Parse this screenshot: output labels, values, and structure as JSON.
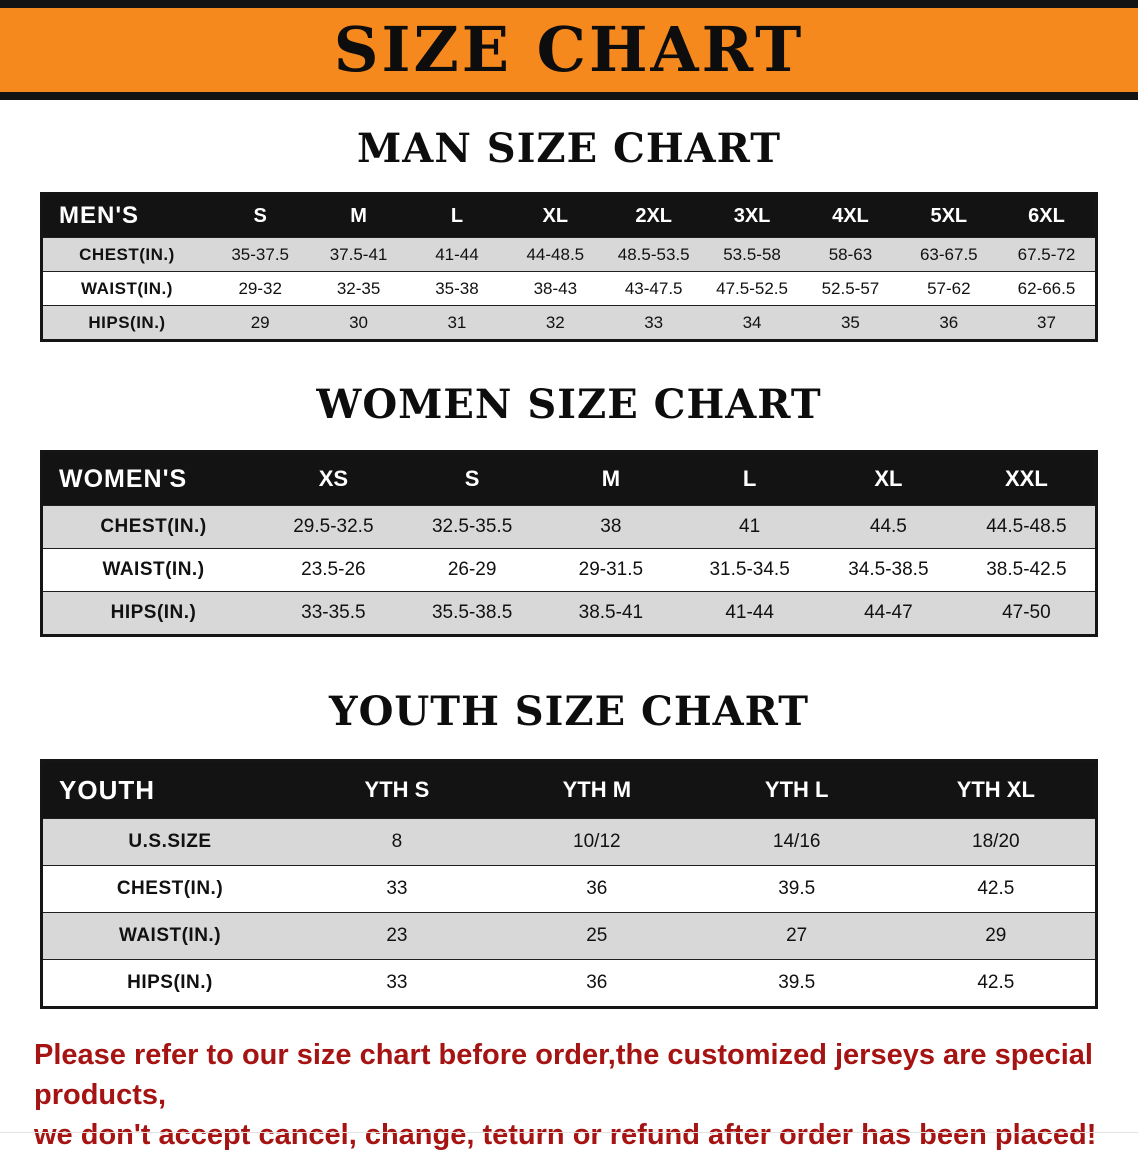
{
  "banner": {
    "title": "SIZE CHART",
    "bg_color": "#f6891e"
  },
  "sections": [
    {
      "heading": "MAN SIZE CHART",
      "corner": "MEN'S",
      "columns": [
        "S",
        "M",
        "L",
        "XL",
        "2XL",
        "3XL",
        "4XL",
        "5XL",
        "6XL"
      ],
      "rows": [
        {
          "label": "CHEST(IN.)",
          "values": [
            "35-37.5",
            "37.5-41",
            "41-44",
            "44-48.5",
            "48.5-53.5",
            "53.5-58",
            "58-63",
            "63-67.5",
            "67.5-72"
          ]
        },
        {
          "label": "WAIST(IN.)",
          "values": [
            "29-32",
            "32-35",
            "35-38",
            "38-43",
            "43-47.5",
            "47.5-52.5",
            "52.5-57",
            "57-62",
            "62-66.5"
          ]
        },
        {
          "label": "HIPS(IN.)",
          "values": [
            "29",
            "30",
            "31",
            "32",
            "33",
            "34",
            "35",
            "36",
            "37"
          ]
        }
      ]
    },
    {
      "heading": "WOMEN SIZE CHART",
      "corner": "WOMEN'S",
      "columns": [
        "XS",
        "S",
        "M",
        "L",
        "XL",
        "XXL"
      ],
      "rows": [
        {
          "label": "CHEST(IN.)",
          "values": [
            "29.5-32.5",
            "32.5-35.5",
            "38",
            "41",
            "44.5",
            "44.5-48.5"
          ]
        },
        {
          "label": "WAIST(IN.)",
          "values": [
            "23.5-26",
            "26-29",
            "29-31.5",
            "31.5-34.5",
            "34.5-38.5",
            "38.5-42.5"
          ]
        },
        {
          "label": "HIPS(IN.)",
          "values": [
            "33-35.5",
            "35.5-38.5",
            "38.5-41",
            "41-44",
            "44-47",
            "47-50"
          ]
        }
      ]
    },
    {
      "heading": "YOUTH SIZE CHART",
      "corner": "YOUTH",
      "columns": [
        "YTH S",
        "YTH M",
        "YTH L",
        "YTH XL"
      ],
      "rows": [
        {
          "label": "U.S.SIZE",
          "values": [
            "8",
            "10/12",
            "14/16",
            "18/20"
          ]
        },
        {
          "label": "CHEST(IN.)",
          "values": [
            "33",
            "36",
            "39.5",
            "42.5"
          ]
        },
        {
          "label": "WAIST(IN.)",
          "values": [
            "23",
            "25",
            "27",
            "29"
          ]
        },
        {
          "label": "HIPS(IN.)",
          "values": [
            "33",
            "36",
            "39.5",
            "42.5"
          ]
        }
      ]
    }
  ],
  "footer_note": {
    "line1": "Please refer to our size chart before order,the customized jerseys are special products,",
    "line2": "we don't accept cancel, change, teturn or refund after order has been placed!",
    "color": "#a51313"
  }
}
